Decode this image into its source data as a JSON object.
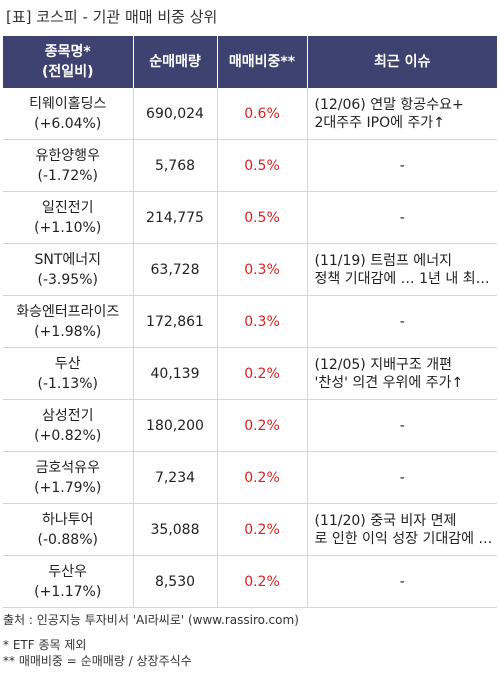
{
  "title": "[표] 코스피 - 기관 매매 비중 상위",
  "headers": {
    "name_line1": "종목명*",
    "name_line2": "(전일비)",
    "volume": "순매매량",
    "ratio": "매매비중**",
    "issue": "최근 이슈"
  },
  "rows": [
    {
      "name": "티웨이홀딩스",
      "change": "(+6.04%)",
      "volume": "690,024",
      "ratio": "0.6%",
      "issue_line1": "(12/06) 연말 항공수요+",
      "issue_line2": "2대주주 IPO에 주가↑"
    },
    {
      "name": "유한양행우",
      "change": "(-1.72%)",
      "volume": "5,768",
      "ratio": "0.5%",
      "issue_line1": "-",
      "issue_line2": ""
    },
    {
      "name": "일진전기",
      "change": "(+1.10%)",
      "volume": "214,775",
      "ratio": "0.5%",
      "issue_line1": "-",
      "issue_line2": ""
    },
    {
      "name": "SNT에너지",
      "change": "(-3.95%)",
      "volume": "63,728",
      "ratio": "0.3%",
      "issue_line1": "(11/19) 트럼프 에너지",
      "issue_line2": "정책 기대감에 … 1년 내 최…"
    },
    {
      "name": "화승엔터프라이즈",
      "change": "(+1.98%)",
      "volume": "172,861",
      "ratio": "0.3%",
      "issue_line1": "-",
      "issue_line2": ""
    },
    {
      "name": "두산",
      "change": "(-1.13%)",
      "volume": "40,139",
      "ratio": "0.2%",
      "issue_line1": "(12/05) 지배구조 개편",
      "issue_line2": "'찬성' 의견 우위에 주가↑"
    },
    {
      "name": "삼성전기",
      "change": "(+0.82%)",
      "volume": "180,200",
      "ratio": "0.2%",
      "issue_line1": "-",
      "issue_line2": ""
    },
    {
      "name": "금호석유우",
      "change": "(+1.79%)",
      "volume": "7,234",
      "ratio": "0.2%",
      "issue_line1": "-",
      "issue_line2": ""
    },
    {
      "name": "하나투어",
      "change": "(-0.88%)",
      "volume": "35,088",
      "ratio": "0.2%",
      "issue_line1": "(11/20) 중국 비자 면제",
      "issue_line2": "로 인한 이익 성장 기대감에 …"
    },
    {
      "name": "두산우",
      "change": "(+1.17%)",
      "volume": "8,530",
      "ratio": "0.2%",
      "issue_line1": "-",
      "issue_line2": ""
    }
  ],
  "footer": {
    "source": "출처 : 인공지능 투자비서 'AI라씨로' (www.rassiro.com)",
    "note1": "* ETF 종목 제외",
    "note2": "** 매매비중 = 순매매량 / 상장주식수"
  },
  "colors": {
    "header_bg": "#3d4270",
    "ratio_text": "#e02020"
  }
}
